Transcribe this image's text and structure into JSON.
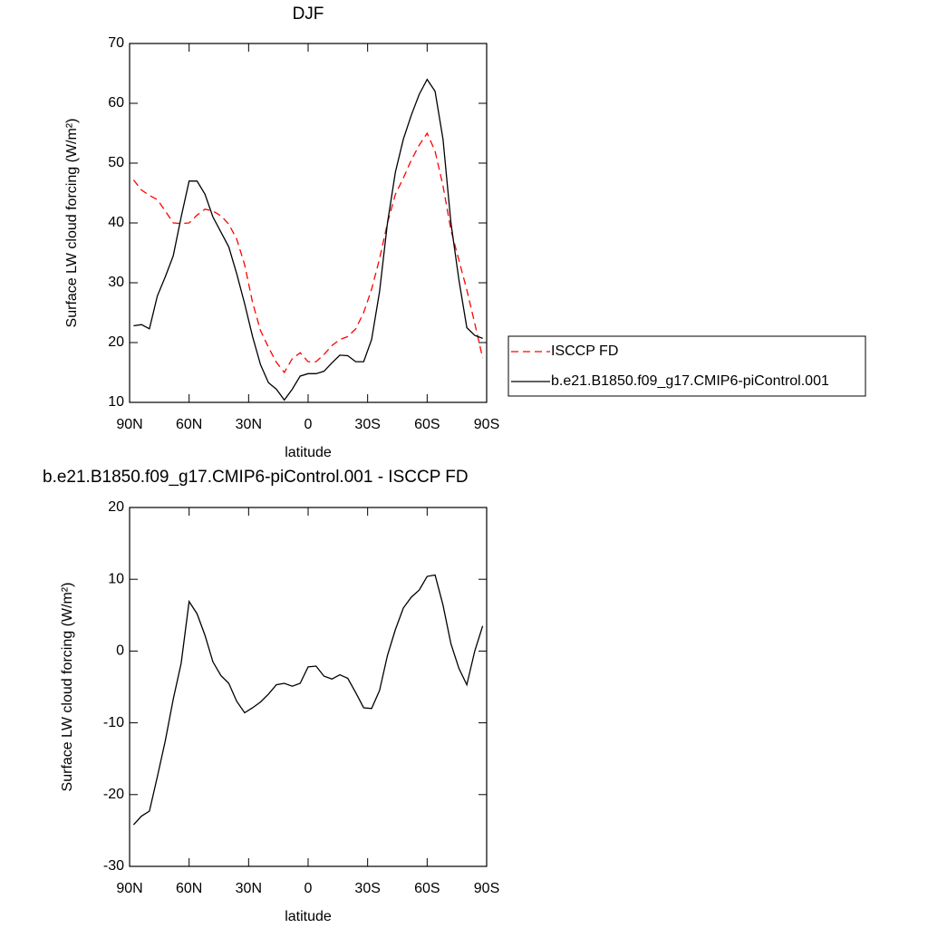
{
  "chart_data": [
    {
      "type": "line",
      "title": "DJF",
      "xlabel": "latitude",
      "ylabel": "Surface LW cloud forcing (W/m²)",
      "x": [
        88,
        84,
        80,
        76,
        72,
        68,
        64,
        60,
        56,
        52,
        48,
        44,
        40,
        36,
        32,
        28,
        24,
        20,
        16,
        12,
        8,
        4,
        0,
        -4,
        -8,
        -12,
        -16,
        -20,
        -24,
        -28,
        -32,
        -36,
        -40,
        -44,
        -48,
        -52,
        -56,
        -60,
        -64,
        -68,
        -72,
        -76,
        -80,
        -84,
        -88
      ],
      "series": [
        {
          "name": "ISCCP FD",
          "color": "#ff0000",
          "dashed": true,
          "values": [
            47.2,
            45.5,
            44.6,
            43.9,
            42.0,
            40.0,
            39.9,
            40.0,
            41.3,
            42.3,
            42.0,
            41.2,
            39.8,
            37.3,
            33.0,
            26.7,
            22.0,
            19.2,
            16.7,
            15.0,
            17.3,
            18.3,
            16.8,
            16.8,
            18.0,
            19.5,
            20.5,
            21.0,
            22.3,
            25.0,
            28.9,
            34.0,
            40.0,
            44.8,
            47.5,
            50.5,
            53.0,
            55.0,
            52.0,
            46.2,
            38.8,
            33.8,
            28.8,
            23.2,
            17.4
          ]
        },
        {
          "name": "b.e21.B1850.f09_g17.CMIP6-piControl.001",
          "color": "#000000",
          "dashed": false,
          "values": [
            22.8,
            23.0,
            22.3,
            27.8,
            31.0,
            34.5,
            41.0,
            47.0,
            47.0,
            44.8,
            41.0,
            38.5,
            36.0,
            31.5,
            26.5,
            21.0,
            16.3,
            13.3,
            12.2,
            10.4,
            12.2,
            14.4,
            14.8,
            14.8,
            15.2,
            16.6,
            17.9,
            17.8,
            16.8,
            16.8,
            20.5,
            28.5,
            40.0,
            48.5,
            54.0,
            58.0,
            61.5,
            64.0,
            62.0,
            54.0,
            40.0,
            30.5,
            22.5,
            21.2,
            20.7
          ]
        }
      ],
      "xlim": [
        90,
        -90
      ],
      "xticks": [
        {
          "value": 90,
          "label": "90N"
        },
        {
          "value": 60,
          "label": "60N"
        },
        {
          "value": 30,
          "label": "30N"
        },
        0,
        {
          "value": -30,
          "label": "30S"
        },
        {
          "value": -60,
          "label": "60S"
        },
        {
          "value": -90,
          "label": "90S"
        }
      ],
      "ylim": [
        10,
        70
      ],
      "yticks": [
        10,
        20,
        30,
        40,
        50,
        60,
        70
      ],
      "legend": "right"
    },
    {
      "type": "line",
      "title": "b.e21.B1850.f09_g17.CMIP6-piControl.001 - ISCCP FD",
      "xlabel": "latitude",
      "ylabel": "Surface LW cloud forcing (W/m²)",
      "x": [
        88,
        84,
        80,
        76,
        72,
        68,
        64,
        60,
        56,
        52,
        48,
        44,
        40,
        36,
        32,
        28,
        24,
        20,
        16,
        12,
        8,
        4,
        0,
        -4,
        -8,
        -12,
        -16,
        -20,
        -24,
        -28,
        -32,
        -36,
        -40,
        -44,
        -48,
        -52,
        -56,
        -60,
        -64,
        -68,
        -72,
        -76,
        -80,
        -84,
        -88
      ],
      "series": [
        {
          "color": "#000000",
          "dashed": false,
          "values": [
            -24.2,
            -23.0,
            -22.3,
            -17.5,
            -12.5,
            -6.7,
            -1.7,
            6.9,
            5.2,
            2.2,
            -1.5,
            -3.4,
            -4.5,
            -7.0,
            -8.6,
            -7.9,
            -7.1,
            -6.0,
            -4.7,
            -4.5,
            -4.9,
            -4.5,
            -2.2,
            -2.1,
            -3.5,
            -3.9,
            -3.3,
            -3.8,
            -5.8,
            -7.9,
            -8.0,
            -5.5,
            -0.6,
            3.0,
            6.0,
            7.5,
            8.5,
            10.4,
            10.6,
            6.4,
            1.0,
            -2.4,
            -4.7,
            0.0,
            3.5
          ]
        }
      ],
      "xlim": [
        90,
        -90
      ],
      "xticks": [
        {
          "value": 90,
          "label": "90N"
        },
        {
          "value": 60,
          "label": "60N"
        },
        {
          "value": 30,
          "label": "30N"
        },
        0,
        {
          "value": -30,
          "label": "30S"
        },
        {
          "value": -60,
          "label": "60S"
        },
        {
          "value": -90,
          "label": "90S"
        }
      ],
      "ylim": [
        -30,
        20
      ],
      "yticks": [
        -30,
        -20,
        -10,
        0,
        10,
        20
      ]
    }
  ]
}
